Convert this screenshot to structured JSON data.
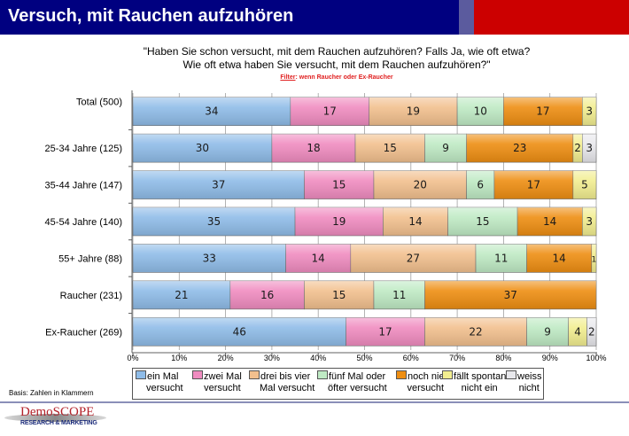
{
  "header": {
    "title": "Versuch, mit Rauchen aufzuhören",
    "colors": {
      "blue": "#000080",
      "strip": "#5b5b9e",
      "red": "#cc0000"
    }
  },
  "question": {
    "line1": "\"Haben Sie schon versucht, mit dem Rauchen aufzuhören? Falls Ja, wie oft etwa?",
    "line2": "Wie oft etwa haben Sie versucht, mit dem Rauchen aufzuhören?\""
  },
  "filter": {
    "label": "Filter",
    "text": ": wenn Raucher oder Ex-Raucher"
  },
  "footer": {
    "basis": "Basis: Zahlen in Klammern",
    "logo_name": "DemoSCOPE",
    "logo_sub": "RESEARCH & MARKETING"
  },
  "chart_data": {
    "type": "bar",
    "orientation": "horizontal",
    "stacked": true,
    "title": "",
    "xlabel": "",
    "ylabel": "",
    "xlim": [
      0,
      100
    ],
    "x_ticks": [
      "0%",
      "10%",
      "20%",
      "30%",
      "40%",
      "50%",
      "60%",
      "70%",
      "80%",
      "90%",
      "100%"
    ],
    "grid": true,
    "legend_position": "bottom",
    "categories": [
      "Total (500)",
      "25-34 Jahre (125)",
      "35-44 Jahre (147)",
      "45-54 Jahre (140)",
      "55+ Jahre (88)",
      "Raucher (231)",
      "Ex-Raucher (269)"
    ],
    "series": [
      {
        "name": "ein Mal versucht",
        "legend_lines": [
          "ein Mal",
          "versucht"
        ],
        "color": "#8fbce8",
        "values": [
          34,
          30,
          37,
          35,
          33,
          21,
          46
        ],
        "labels": [
          "34",
          "30",
          "37",
          "35",
          "33",
          "21",
          "46"
        ]
      },
      {
        "name": "zwei Mal versucht",
        "legend_lines": [
          "zwei Mal",
          "versucht"
        ],
        "color": "#f08cc0",
        "values": [
          17,
          18,
          15,
          19,
          14,
          16,
          17
        ],
        "labels": [
          "17",
          "18",
          "15",
          "19",
          "14",
          "16",
          "17"
        ]
      },
      {
        "name": "drei bis vier Mal versucht",
        "legend_lines": [
          "drei bis vier",
          "Mal versucht"
        ],
        "color": "#f2c08e",
        "values": [
          19,
          15,
          20,
          14,
          27,
          15,
          22
        ],
        "labels": [
          "19",
          "15",
          "20",
          "14",
          "27",
          "15",
          "22"
        ]
      },
      {
        "name": "fünf Mal oder öfter versucht",
        "legend_lines": [
          "fünf Mal oder",
          "öfter versucht"
        ],
        "color": "#bfeac4",
        "values": [
          10,
          9,
          6,
          15,
          11,
          11,
          9
        ],
        "labels": [
          "10",
          "9",
          "6",
          "15",
          "11",
          "11",
          "9"
        ]
      },
      {
        "name": "noch nie versucht",
        "legend_lines": [
          "noch nie",
          "versucht"
        ],
        "color": "#ee8e12",
        "values": [
          17,
          23,
          17,
          14,
          14,
          37,
          0
        ],
        "labels": [
          "17",
          "23",
          "17",
          "14",
          "14",
          "37",
          ""
        ]
      },
      {
        "name": "fällt spontan nicht ein",
        "legend_lines": [
          "fällt spontan",
          "nicht ein"
        ],
        "color": "#f2ee90",
        "values": [
          3,
          2,
          5,
          3,
          1,
          0,
          4
        ],
        "labels": [
          "3",
          "2",
          "5",
          "3",
          "1",
          "",
          "4"
        ]
      },
      {
        "name": "weiss nicht",
        "legend_lines": [
          "weiss",
          "nicht"
        ],
        "color": "#e8e8ec",
        "values": [
          0,
          3,
          0,
          0,
          0,
          0,
          2
        ],
        "labels": [
          "",
          "3",
          "",
          "",
          "",
          "",
          "2"
        ]
      }
    ]
  }
}
